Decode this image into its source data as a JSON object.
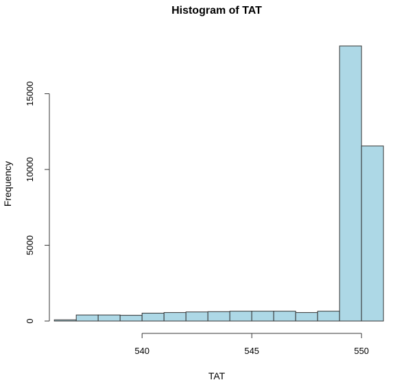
{
  "chart_data": {
    "type": "bar",
    "title": "Histogram of TAT",
    "xlabel": "TAT",
    "ylabel": "Frequency",
    "bar_color": "#add8e6",
    "border_color": "#333333",
    "bins": [
      {
        "start": 536,
        "end": 537,
        "value": 80
      },
      {
        "start": 537,
        "end": 538,
        "value": 400
      },
      {
        "start": 538,
        "end": 539,
        "value": 400
      },
      {
        "start": 539,
        "end": 540,
        "value": 380
      },
      {
        "start": 540,
        "end": 541,
        "value": 520
      },
      {
        "start": 541,
        "end": 542,
        "value": 560
      },
      {
        "start": 542,
        "end": 543,
        "value": 600
      },
      {
        "start": 543,
        "end": 544,
        "value": 620
      },
      {
        "start": 544,
        "end": 545,
        "value": 650
      },
      {
        "start": 545,
        "end": 546,
        "value": 650
      },
      {
        "start": 546,
        "end": 547,
        "value": 650
      },
      {
        "start": 547,
        "end": 548,
        "value": 560
      },
      {
        "start": 548,
        "end": 549,
        "value": 650
      },
      {
        "start": 549,
        "end": 550,
        "value": 18150
      },
      {
        "start": 550,
        "end": 551,
        "value": 11550
      }
    ],
    "x_ticks": [
      540,
      545,
      550
    ],
    "y_ticks": [
      0,
      5000,
      10000,
      15000
    ],
    "xlim": [
      535.4,
      551.4
    ],
    "ylim": [
      0,
      18150
    ]
  }
}
